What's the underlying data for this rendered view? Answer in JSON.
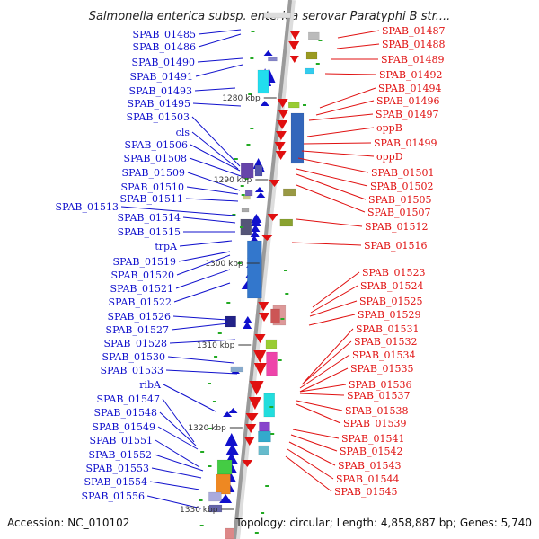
{
  "title": "Salmonella enterica subsp. enterica serovar Paratyphi B str....",
  "footer": {
    "accession": "Accession: NC_010102",
    "summary": "Topology: circular; Length: 4,858,887 bp; Genes: 5,740"
  },
  "kbp_ticks": [
    "1280 kbp",
    "1290 kbp",
    "1300 kbp",
    "1310 kbp",
    "1320 kbp",
    "1330 kbp"
  ],
  "left_labels": [
    "SPAB_01485",
    "SPAB_01486",
    "SPAB_01490",
    "SPAB_01491",
    "SPAB_01493",
    "SPAB_01495",
    "SPAB_01503",
    "cls",
    "SPAB_01506",
    "SPAB_01508",
    "SPAB_01509",
    "SPAB_01510",
    "SPAB_01511",
    "SPAB_01513",
    "SPAB_01514",
    "SPAB_01515",
    "trpA",
    "SPAB_01519",
    "SPAB_01520",
    "SPAB_01521",
    "SPAB_01522",
    "SPAB_01526",
    "SPAB_01527",
    "SPAB_01528",
    "SPAB_01530",
    "SPAB_01533",
    "ribA",
    "SPAB_01547",
    "SPAB_01548",
    "SPAB_01549",
    "SPAB_01551",
    "SPAB_01552",
    "SPAB_01553",
    "SPAB_01554",
    "SPAB_01556"
  ],
  "right_labels": [
    "SPAB_01487",
    "SPAB_01488",
    "SPAB_01489",
    "SPAB_01492",
    "SPAB_01494",
    "SPAB_01496",
    "SPAB_01497",
    "oppB",
    "SPAB_01499",
    "oppD",
    "SPAB_01501",
    "SPAB_01502",
    "SPAB_01505",
    "SPAB_01507",
    "SPAB_01512",
    "SPAB_01516",
    "SPAB_01523",
    "SPAB_01524",
    "SPAB_01525",
    "SPAB_01529",
    "SPAB_01531",
    "SPAB_01532",
    "SPAB_01534",
    "SPAB_01535",
    "SPAB_01536",
    "SPAB_01537",
    "SPAB_01538",
    "SPAB_01539",
    "SPAB_01541",
    "SPAB_01542",
    "SPAB_01543",
    "SPAB_01544",
    "SPAB_01545"
  ],
  "colors": {
    "forward": "#1010cc",
    "reverse": "#e01010",
    "backbone": "#999999"
  }
}
